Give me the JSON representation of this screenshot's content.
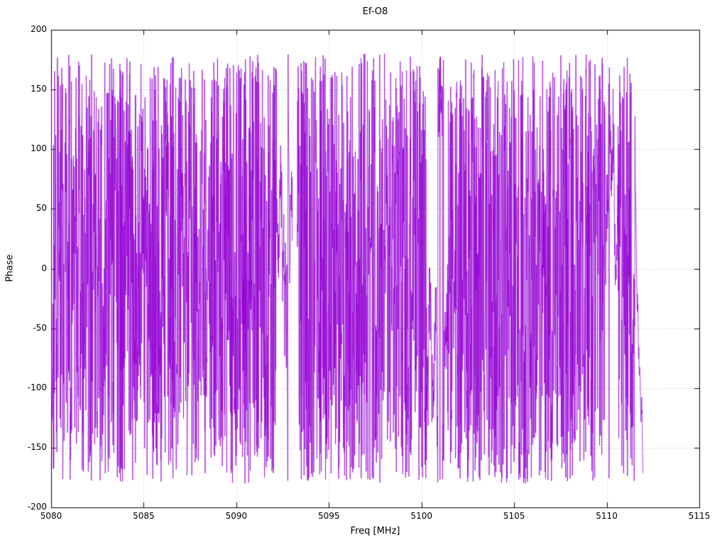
{
  "chart_data": {
    "type": "line",
    "title": "Ef-O8",
    "xlabel": "Freq [MHz]",
    "ylabel": "Phase",
    "xlim": [
      5080,
      5115
    ],
    "ylim": [
      -200,
      200
    ],
    "xticks": [
      {
        "v": 5080,
        "label": "5080"
      },
      {
        "v": 5085,
        "label": "5085"
      },
      {
        "v": 5090,
        "label": "5090"
      },
      {
        "v": 5095,
        "label": "5095"
      },
      {
        "v": 5100,
        "label": "5100"
      },
      {
        "v": 5105,
        "label": "5105"
      },
      {
        "v": 5110,
        "label": "5110"
      },
      {
        "v": 5115,
        "label": "5115"
      }
    ],
    "yticks": [
      {
        "v": -200,
        "label": "-200"
      },
      {
        "v": -150,
        "label": "-150"
      },
      {
        "v": -100,
        "label": "-100"
      },
      {
        "v": -50,
        "label": "-50"
      },
      {
        "v": 0,
        "label": "0"
      },
      {
        "v": 50,
        "label": "50"
      },
      {
        "v": 100,
        "label": "100"
      },
      {
        "v": 150,
        "label": "150"
      },
      {
        "v": 200,
        "label": "200"
      }
    ],
    "grid": "dotted",
    "grid_color": "#b0b0b0",
    "border_color": "#000000",
    "legend": "none",
    "series": [
      {
        "name": "Ef-O8 phase",
        "model": "wrapped-phase-noise",
        "description": "Densely wrapped phase (deg) vs frequency; values span -180..+180 and wrap continuously, rendering as a near-solid noise band from 5080 MHz to ~5112 MHz, with brief sparser stretches near 5092.6, 5100.9 and 5110.2 MHz and a short unwrapped descending tail ending near 5111.9 MHz.",
        "color": "#9400d3",
        "x_start": 5080.0,
        "x_end": 5111.95,
        "n_points": 3200,
        "wrap_deg": 180,
        "step_deg": 150,
        "seed": 1337,
        "gaps": [
          [
            5093.02,
            5093.28
          ]
        ],
        "light_regions": [
          [
            5092.2,
            5093.0
          ],
          [
            5100.3,
            5101.4
          ],
          [
            5109.9,
            5110.6
          ]
        ],
        "tail_start": 5111.55
      }
    ]
  }
}
